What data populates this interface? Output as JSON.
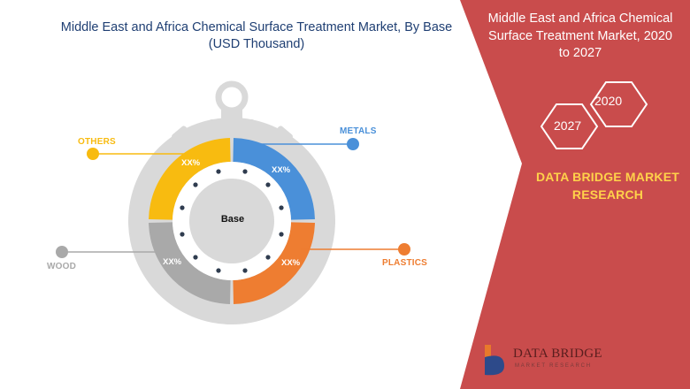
{
  "header": {
    "title_line1": "Middle East and Africa Chemical Surface Treatment Market, By Base",
    "title_line2": "(USD Thousand)"
  },
  "side_panel": {
    "title_line1": "Middle East and Africa Chemical",
    "title_line2": "Surface Treatment Market, 2020",
    "title_line3": "to 2027",
    "hex_year_1": "2020",
    "hex_year_2": "2027",
    "brand_line1": "DATA BRIDGE MARKET",
    "brand_line2": "RESEARCH",
    "panel_color": "#c94c4c",
    "brand_color": "#ffd24a"
  },
  "logo": {
    "name": "DATA BRIDGE",
    "tagline": "MARKET RESEARCH"
  },
  "chart_data": {
    "type": "pie",
    "center_label": "Base",
    "segments": [
      {
        "name": "METALS",
        "value_label": "XX%",
        "color": "#4a90d9"
      },
      {
        "name": "PLASTICS",
        "value_label": "XX%",
        "color": "#ee7d31"
      },
      {
        "name": "WOOD",
        "value_label": "XX%",
        "color": "#a9a9a9"
      },
      {
        "name": "OTHERS",
        "value_label": "XX%",
        "color": "#f8bb10"
      }
    ]
  }
}
